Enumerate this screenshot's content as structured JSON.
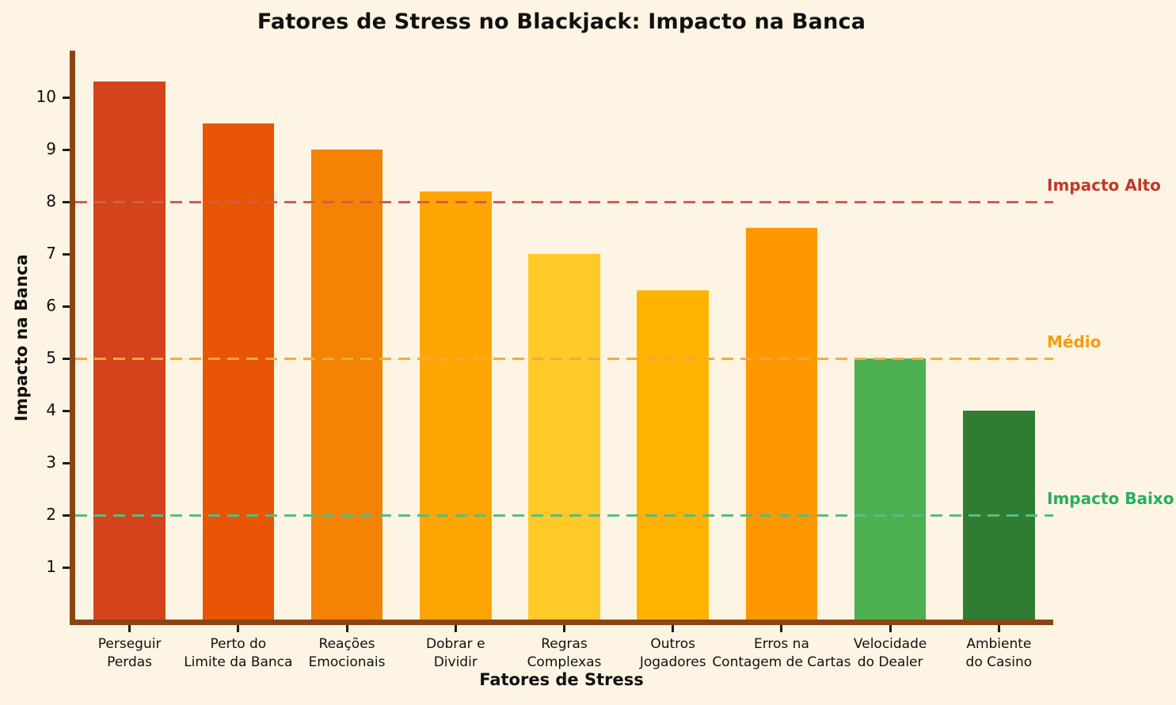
{
  "chart_data": {
    "type": "bar",
    "title": "Fatores de Stress no Blackjack: Impacto na Banca",
    "xlabel": "Fatores de Stress",
    "ylabel": "Impacto na Banca",
    "categories": [
      "Perseguir\nPerdas",
      "Perto do\nLimite da Banca",
      "Reações\nEmocionais",
      "Dobrar e\nDividir",
      "Regras\nComplexas",
      "Outros\nJogadores",
      "Erros na\nContagem de Cartas",
      "Velocidade\ndo Dealer",
      "Ambiente\ndo Casino"
    ],
    "values": [
      10.3,
      9.5,
      9.0,
      8.2,
      7.0,
      6.3,
      7.5,
      5.0,
      4.0
    ],
    "bar_colors": [
      "#d4431b",
      "#e85505",
      "#f48204",
      "#ffa502",
      "#ffca28",
      "#ffb300",
      "#ff9800",
      "#4caf50",
      "#2e7d32"
    ],
    "ylim": [
      0,
      11
    ],
    "yticks": [
      1,
      2,
      3,
      4,
      5,
      6,
      7,
      8,
      9,
      10
    ],
    "grid": false,
    "legend": "none",
    "reference_lines": [
      {
        "value": 8,
        "label": "Impacto Alto",
        "line_color": "#cd5f50",
        "label_color": "#c0392b"
      },
      {
        "value": 5,
        "label": "Médio",
        "line_color": "#f5a93e",
        "label_color": "#f39c12"
      },
      {
        "value": 2,
        "label": "Impacto Baixo",
        "line_color": "#55be84",
        "label_color": "#27ae60"
      }
    ],
    "colors": {
      "background": "#fdf4e3",
      "axis_spine": "#8b4513",
      "tick_mark": "#1c1c1c",
      "text": "#111111"
    }
  }
}
